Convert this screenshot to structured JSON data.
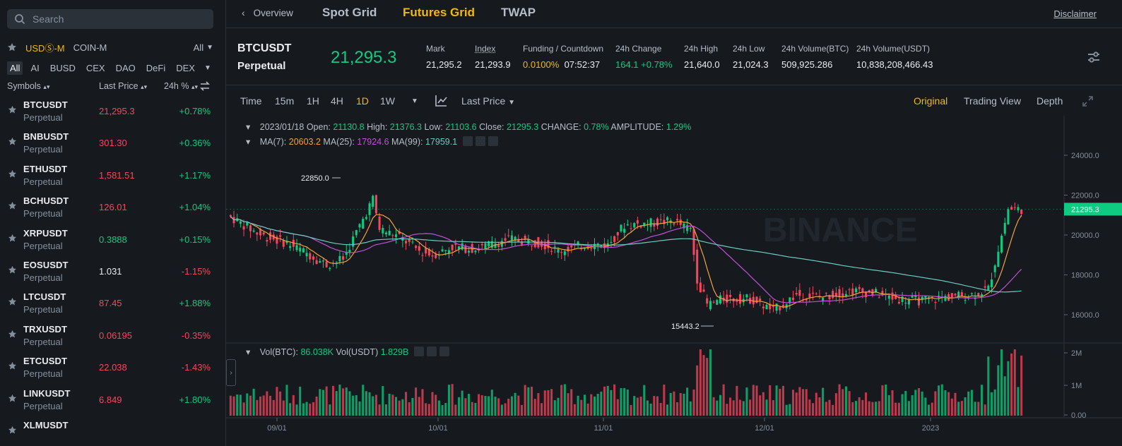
{
  "search": {
    "placeholder": "Search"
  },
  "market_tabs": [
    "USDⓈ-M",
    "COIN-M"
  ],
  "market_filter": "All",
  "categories": [
    "All",
    "AI",
    "BUSD",
    "CEX",
    "DAO",
    "DeFi",
    "DEX"
  ],
  "list_headers": {
    "symbols": "Symbols",
    "last_price": "Last Price",
    "change": "24h %"
  },
  "symbols": [
    {
      "name": "BTCUSDT",
      "sub": "Perpetual",
      "price": "21,295.3",
      "change": "+0.78%",
      "price_color": "red",
      "change_color": "green"
    },
    {
      "name": "BNBUSDT",
      "sub": "Perpetual",
      "price": "301.30",
      "change": "+0.36%",
      "price_color": "red",
      "change_color": "green"
    },
    {
      "name": "ETHUSDT",
      "sub": "Perpetual",
      "price": "1,581.51",
      "change": "+1.17%",
      "price_color": "red",
      "change_color": "green"
    },
    {
      "name": "BCHUSDT",
      "sub": "Perpetual",
      "price": "126.01",
      "change": "+1.04%",
      "price_color": "red",
      "change_color": "green"
    },
    {
      "name": "XRPUSDT",
      "sub": "Perpetual",
      "price": "0.3888",
      "change": "+0.15%",
      "price_color": "green",
      "change_color": "green"
    },
    {
      "name": "EOSUSDT",
      "sub": "Perpetual",
      "price": "1.031",
      "change": "-1.15%",
      "price_color": "white",
      "change_color": "red"
    },
    {
      "name": "LTCUSDT",
      "sub": "Perpetual",
      "price": "87.45",
      "change": "+1.88%",
      "price_color": "red",
      "change_color": "green"
    },
    {
      "name": "TRXUSDT",
      "sub": "Perpetual",
      "price": "0.06195",
      "change": "-0.35%",
      "price_color": "red",
      "change_color": "red"
    },
    {
      "name": "ETCUSDT",
      "sub": "Perpetual",
      "price": "22.038",
      "change": "-1.43%",
      "price_color": "red",
      "change_color": "red"
    },
    {
      "name": "LINKUSDT",
      "sub": "Perpetual",
      "price": "6.849",
      "change": "+1.80%",
      "price_color": "red",
      "change_color": "green"
    },
    {
      "name": "XLMUSDT",
      "sub": "",
      "price": "",
      "change": "",
      "price_color": "white",
      "change_color": "white"
    }
  ],
  "nav": {
    "back_label": "Overview",
    "tabs": [
      "Spot Grid",
      "Futures Grid",
      "TWAP"
    ],
    "active_tab": "Futures Grid",
    "disclaimer": "Disclaimer"
  },
  "ticker": {
    "symbol": "BTCUSDT",
    "type": "Perpetual",
    "last_price": "21,295.3",
    "stats": [
      {
        "label": "Mark",
        "value": "21,295.2"
      },
      {
        "label": "Index",
        "value": "21,293.9"
      },
      {
        "label": "Funding / Countdown",
        "value_a": "0.0100%",
        "value_b": "07:52:37"
      },
      {
        "label": "24h Change",
        "value": "164.1 +0.78%"
      },
      {
        "label": "24h High",
        "value": "21,640.0"
      },
      {
        "label": "24h Low",
        "value": "21,024.3"
      },
      {
        "label": "24h Volume(BTC)",
        "value": "509,925.286"
      },
      {
        "label": "24h Volume(USDT)",
        "value": "10,838,208,466.43"
      }
    ]
  },
  "toolbar": {
    "intervals": [
      "Time",
      "15m",
      "1H",
      "4H",
      "1D",
      "1W"
    ],
    "active_interval": "1D",
    "price_type": "Last Price",
    "views": [
      "Original",
      "Trading View",
      "Depth"
    ],
    "active_view": "Original"
  },
  "ohlc": {
    "date": "2023/01/18",
    "open_label": "Open:",
    "open": "21130.8",
    "high_label": "High:",
    "high": "21376.3",
    "low_label": "Low:",
    "low": "21103.6",
    "close_label": "Close:",
    "close": "21295.3",
    "change_label": "CHANGE:",
    "change": "0.78%",
    "amplitude_label": "AMPLITUDE:",
    "amplitude": "1.29%"
  },
  "ma": {
    "ma7_label": "MA(7):",
    "ma7": "20603.2",
    "ma25_label": "MA(25):",
    "ma25": "17924.6",
    "ma99_label": "MA(99):",
    "ma99": "17959.1"
  },
  "volume_legend": {
    "btc_label": "Vol(BTC):",
    "btc": "86.038K",
    "usdt_label": "Vol(USDT)",
    "usdt": "1.829B"
  },
  "watermark": "BINANCE",
  "chart_data": {
    "type": "candlestick",
    "price_axis_ticks": [
      "24000.0",
      "22000.0",
      "20000.0",
      "18000.0",
      "16000.0"
    ],
    "volume_axis_ticks": [
      "2M",
      "1M",
      "0.00"
    ],
    "x_tick_labels": [
      "09/01",
      "10/01",
      "11/01",
      "12/01",
      "2023"
    ],
    "current_price_label": "21295.3",
    "annotations": {
      "max_label": "22850.0",
      "min_label": "15443.2"
    },
    "ylim": [
      15000,
      25000
    ],
    "up_color": "#0ecb81",
    "down_color": "#f6465d",
    "ma_colors": {
      "ma7": "#f0a23c",
      "ma25": "#c34fd9",
      "ma99": "#6bc9c2"
    }
  }
}
